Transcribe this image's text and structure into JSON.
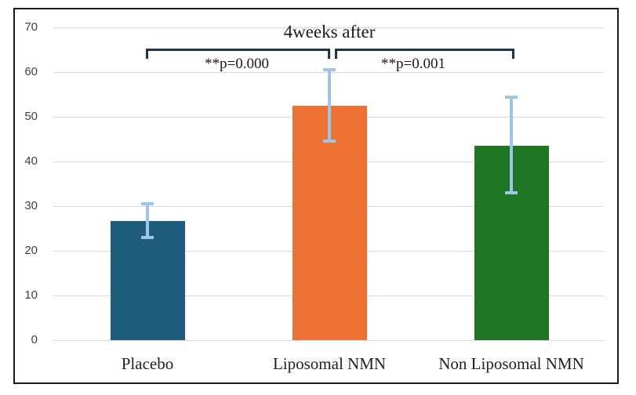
{
  "figure": {
    "title": "4weeks after"
  },
  "chart_data": {
    "type": "bar",
    "title": "4weeks after",
    "categories": [
      "Placebo",
      "Liposomal NMN",
      "Non Liposomal NMN"
    ],
    "values": [
      26.6,
      52.5,
      43.5
    ],
    "error_bars": [
      {
        "low": 23.0,
        "high": 30.5
      },
      {
        "low": 44.5,
        "high": 60.5
      },
      {
        "low": 33.0,
        "high": 54.3
      }
    ],
    "bar_colors": [
      "#1f5c7d",
      "#ed7132",
      "#1e7623"
    ],
    "error_bar_color": "#9fc5e8",
    "significance_brackets": [
      {
        "label": "**p=0.000",
        "between": [
          "Placebo",
          "Liposomal NMN"
        ]
      },
      {
        "label": "**p=0.001",
        "between": [
          "Liposomal NMN",
          "Non Liposomal NMN"
        ]
      }
    ],
    "bracket_color": "#1f3447",
    "xlabel": "",
    "ylabel": "",
    "ylim": [
      0,
      70
    ],
    "yticks": [
      0,
      10,
      20,
      30,
      40,
      50,
      60,
      70
    ],
    "grid": true,
    "gridline_color": "#d9d9d9",
    "legend": "none",
    "frame_border_color": "#1a1a1a"
  }
}
